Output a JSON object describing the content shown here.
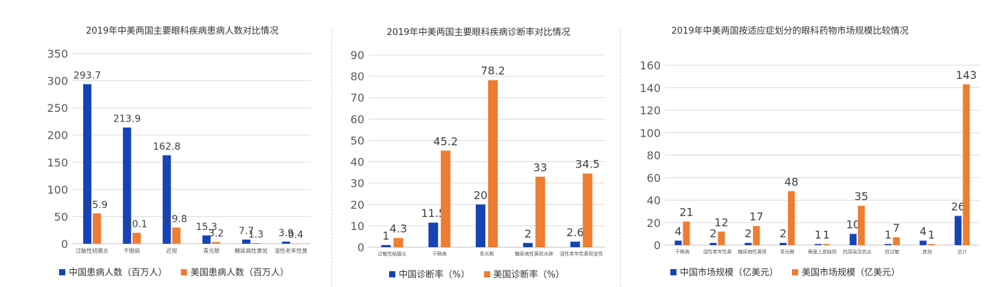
{
  "colors": {
    "china": "#1744b4",
    "usa": "#ee7d31",
    "grid": "#d9d9d9",
    "axis_text": "#595959"
  },
  "chart_data": [
    {
      "type": "bar",
      "title": "2019年中美两国主要眼科疾病患病人数对比情况",
      "categories": [
        "过敏性结膜炎",
        "干眼病",
        "近视",
        "青光眼",
        "糖尿病性黄斑",
        "湿性老年性黄"
      ],
      "series": [
        {
          "name": "中国患病人数（百万人）",
          "values": [
            293.7,
            213.9,
            162.8,
            15.3,
            7.7,
            3.9
          ],
          "labels": [
            "293.7",
            "213.9",
            "162.8",
            "15.3",
            "7.7",
            "3.9"
          ]
        },
        {
          "name": "美国患病人数（百万人）",
          "values": [
            55.9,
            20.1,
            29.8,
            3.2,
            1.3,
            0.4
          ],
          "labels": [
            "55.9",
            "20.1",
            "29.8",
            "3.2",
            "1.3",
            "0.4"
          ]
        }
      ],
      "ylim": [
        0,
        350
      ],
      "yticks": [
        "0",
        "50",
        "100",
        "150",
        "200",
        "250",
        "300",
        "350"
      ],
      "grid": true,
      "legend": "bottom"
    },
    {
      "type": "bar",
      "title": "2019年中美两国主要眼科疾病诊断率对比情况",
      "categories": [
        "过敏性结膜炎",
        "干眼病",
        "青光眼",
        "糖尿病性黄斑水肿",
        "湿性老年性黄斑变性"
      ],
      "series": [
        {
          "name": "中国诊断率（%）",
          "values": [
            1,
            11.5,
            20,
            2,
            2.6
          ],
          "labels": [
            "1",
            "11.5",
            "20",
            "2",
            "2.6"
          ]
        },
        {
          "name": "美国诊断率（%）",
          "values": [
            4.3,
            45.2,
            78.2,
            33,
            34.5
          ],
          "labels": [
            "4.3",
            "45.2",
            "78.2",
            "33",
            "34.5"
          ]
        }
      ],
      "ylim": [
        0,
        90
      ],
      "yticks": [
        "0",
        "10",
        "20",
        "30",
        "40",
        "50",
        "60",
        "70",
        "80",
        "90"
      ],
      "grid": true,
      "legend": "bottom"
    },
    {
      "type": "bar",
      "title": "2019年中美两国按适应症划分的眼科药物市场规模比较情况",
      "categories": [
        "干眼病",
        "湿性老年性黄",
        "糖尿病性黄斑",
        "青光眼",
        "角膜上皮缺损",
        "抗感染及抗炎",
        "抗过敏",
        "其他",
        "总计"
      ],
      "series": [
        {
          "name": "中国市场规模（亿美元）",
          "values": [
            4,
            2,
            2,
            2,
            1,
            10,
            1,
            4,
            26
          ],
          "labels": [
            "4",
            "2",
            "2",
            "2",
            "1",
            "10",
            "1",
            "4",
            "26"
          ]
        },
        {
          "name": "美国市场规模（亿美元）",
          "values": [
            21,
            12,
            17,
            48,
            1,
            35,
            7,
            1,
            143
          ],
          "labels": [
            "21",
            "12",
            "17",
            "48",
            "1",
            "35",
            "7",
            "1",
            "143"
          ]
        }
      ],
      "ylim": [
        0,
        160
      ],
      "yticks": [
        "0",
        "20",
        "40",
        "60",
        "80",
        "100",
        "120",
        "140",
        "160"
      ],
      "grid": true,
      "legend": "bottom"
    }
  ]
}
